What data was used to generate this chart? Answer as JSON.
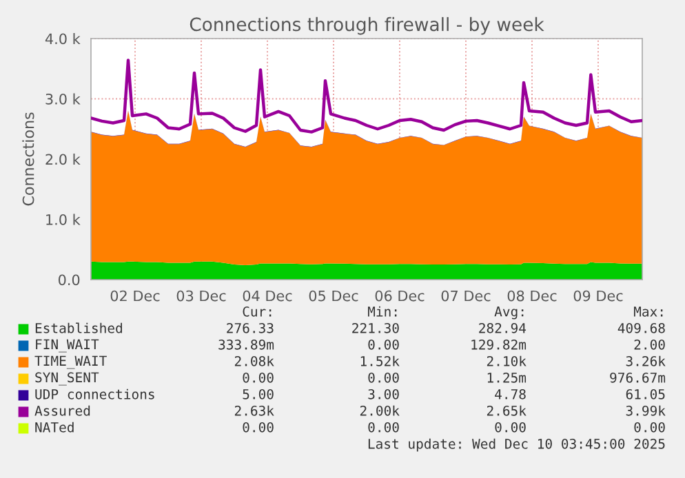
{
  "chart_data": {
    "type": "area",
    "title": "Connections through firewall - by week",
    "ylabel": "Connections",
    "stacked": true,
    "grid": true,
    "legend": "bottom",
    "line_style": "solid",
    "x": [
      "2025-12-01T20:00",
      "2025-12-02T00:00",
      "2025-12-02T04:00",
      "2025-12-02T08:00",
      "2025-12-02T09:30",
      "2025-12-02T11:00",
      "2025-12-02T16:00",
      "2025-12-02T20:00",
      "2025-12-03T00:00",
      "2025-12-03T04:00",
      "2025-12-03T08:00",
      "2025-12-03T09:30",
      "2025-12-03T11:00",
      "2025-12-03T16:00",
      "2025-12-03T20:00",
      "2025-12-04T00:00",
      "2025-12-04T04:00",
      "2025-12-04T08:00",
      "2025-12-04T09:30",
      "2025-12-04T11:00",
      "2025-12-04T16:00",
      "2025-12-04T20:00",
      "2025-12-05T00:00",
      "2025-12-05T04:00",
      "2025-12-05T08:00",
      "2025-12-05T09:00",
      "2025-12-05T11:00",
      "2025-12-05T16:00",
      "2025-12-05T20:00",
      "2025-12-06T00:00",
      "2025-12-06T04:00",
      "2025-12-06T08:00",
      "2025-12-06T12:00",
      "2025-12-06T16:00",
      "2025-12-06T20:00",
      "2025-12-07T00:00",
      "2025-12-07T04:00",
      "2025-12-07T08:00",
      "2025-12-07T12:00",
      "2025-12-07T16:00",
      "2025-12-07T20:00",
      "2025-12-08T00:00",
      "2025-12-08T04:00",
      "2025-12-08T08:00",
      "2025-12-08T09:00",
      "2025-12-08T11:00",
      "2025-12-08T16:00",
      "2025-12-08T20:00",
      "2025-12-09T00:00",
      "2025-12-09T04:00",
      "2025-12-09T08:00",
      "2025-12-09T09:20",
      "2025-12-09T11:00",
      "2025-12-09T16:00",
      "2025-12-09T20:00",
      "2025-12-10T00:00",
      "2025-12-10T04:00"
    ],
    "xlim": [
      "2025-12-01T20:00",
      "2025-12-10T04:00"
    ],
    "xticks": [
      {
        "value": "2025-12-02T12:00",
        "label": "02 Dec"
      },
      {
        "value": "2025-12-03T12:00",
        "label": "03 Dec"
      },
      {
        "value": "2025-12-04T12:00",
        "label": "04 Dec"
      },
      {
        "value": "2025-12-05T12:00",
        "label": "05 Dec"
      },
      {
        "value": "2025-12-06T12:00",
        "label": "06 Dec"
      },
      {
        "value": "2025-12-07T12:00",
        "label": "07 Dec"
      },
      {
        "value": "2025-12-08T12:00",
        "label": "08 Dec"
      },
      {
        "value": "2025-12-09T12:00",
        "label": "09 Dec"
      }
    ],
    "ylim": [
      0,
      4000
    ],
    "yticks": [
      {
        "value": 0,
        "label": "0.0"
      },
      {
        "value": 1000,
        "label": "1.0 k"
      },
      {
        "value": 2000,
        "label": "2.0 k"
      },
      {
        "value": 3000,
        "label": "3.0 k"
      },
      {
        "value": 4000,
        "label": "4.0 k"
      }
    ],
    "series": [
      {
        "name": "Established",
        "color": "#00cc00",
        "values": [
          300,
          290,
          290,
          290,
          300,
          300,
          290,
          290,
          280,
          280,
          280,
          300,
          300,
          300,
          280,
          250,
          240,
          250,
          270,
          270,
          270,
          270,
          260,
          255,
          260,
          270,
          270,
          265,
          260,
          255,
          255,
          255,
          260,
          260,
          255,
          250,
          250,
          255,
          260,
          260,
          255,
          255,
          250,
          255,
          280,
          280,
          275,
          265,
          260,
          260,
          260,
          290,
          280,
          280,
          270,
          265,
          265
        ]
      },
      {
        "name": "FIN_WAIT",
        "color": "#0066b3",
        "values": [
          null,
          null,
          null,
          null,
          null,
          null,
          null,
          null,
          null,
          null,
          null,
          null,
          null,
          null,
          null,
          null,
          null,
          null,
          null,
          null,
          null,
          null,
          null,
          null,
          null,
          null,
          null,
          null,
          null,
          null,
          null,
          null,
          null,
          null,
          null,
          null,
          null,
          null,
          null,
          null,
          null,
          null,
          null,
          null,
          null,
          null,
          null,
          null,
          null,
          null,
          null,
          null,
          null,
          null,
          null,
          null,
          null
        ]
      },
      {
        "name": "TIME_WAIT",
        "color": "#ff8000",
        "values": [
          2150,
          2110,
          2090,
          2110,
          2500,
          2180,
          2130,
          2110,
          1970,
          1970,
          2020,
          2450,
          2180,
          2200,
          2140,
          2000,
          1960,
          2030,
          2430,
          2180,
          2210,
          2160,
          1960,
          1945,
          1990,
          2380,
          2180,
          2155,
          2140,
          2045,
          1995,
          2025,
          2090,
          2120,
          2095,
          2000,
          1980,
          2045,
          2110,
          2120,
          2095,
          2045,
          2000,
          2045,
          2420,
          2270,
          2225,
          2185,
          2090,
          2040,
          2090,
          2460,
          2220,
          2270,
          2180,
          2115,
          2085
        ]
      },
      {
        "name": "SYN_SENT",
        "color": "#ffcc00",
        "values": [
          null,
          null,
          null,
          null,
          null,
          null,
          null,
          null,
          null,
          null,
          null,
          null,
          null,
          null,
          null,
          null,
          null,
          null,
          null,
          null,
          null,
          null,
          null,
          null,
          null,
          null,
          null,
          null,
          null,
          null,
          null,
          null,
          null,
          null,
          null,
          null,
          null,
          null,
          null,
          null,
          null,
          null,
          null,
          null,
          null,
          null,
          null,
          null,
          null,
          null,
          null,
          null,
          null,
          null,
          null,
          null,
          null
        ]
      },
      {
        "name": "UDP connections",
        "color": "#330099",
        "values": [
          5,
          5,
          5,
          5,
          5,
          5,
          5,
          5,
          5,
          5,
          5,
          5,
          5,
          5,
          5,
          5,
          5,
          5,
          5,
          5,
          5,
          5,
          5,
          5,
          5,
          5,
          5,
          5,
          5,
          5,
          5,
          5,
          5,
          5,
          5,
          5,
          5,
          5,
          5,
          5,
          5,
          5,
          5,
          5,
          5,
          5,
          5,
          5,
          5,
          5,
          5,
          5,
          5,
          5,
          5,
          5,
          5
        ]
      },
      {
        "name": "Assured",
        "color": "#990099",
        "type": "line",
        "values": [
          2680,
          2630,
          2600,
          2640,
          3640,
          2720,
          2750,
          2680,
          2520,
          2500,
          2580,
          3430,
          2750,
          2760,
          2680,
          2520,
          2460,
          2560,
          3480,
          2700,
          2790,
          2720,
          2480,
          2450,
          2520,
          3300,
          2750,
          2680,
          2640,
          2560,
          2500,
          2560,
          2640,
          2660,
          2620,
          2520,
          2480,
          2570,
          2630,
          2640,
          2600,
          2550,
          2500,
          2560,
          3270,
          2800,
          2780,
          2680,
          2600,
          2560,
          2600,
          3400,
          2780,
          2800,
          2700,
          2620,
          2640
        ]
      },
      {
        "name": "NATed",
        "color": "#ccff00",
        "values": [
          null,
          null,
          null,
          null,
          null,
          null,
          null,
          null,
          null,
          null,
          null,
          null,
          null,
          null,
          null,
          null,
          null,
          null,
          null,
          null,
          null,
          null,
          null,
          null,
          null,
          null,
          null,
          null,
          null,
          null,
          null,
          null,
          null,
          null,
          null,
          null,
          null,
          null,
          null,
          null,
          null,
          null,
          null,
          null,
          null,
          null,
          null,
          null,
          null,
          null,
          null,
          null,
          null,
          null,
          null,
          null,
          null
        ]
      }
    ],
    "annotations": [
      "Cur:",
      "Min:",
      "Avg:",
      "Max:",
      "276.33",
      "221.30",
      "282.94",
      "409.68",
      "333.89m",
      "0.00",
      "129.82m",
      "2.00",
      "2.08k",
      "1.52k",
      "2.10k",
      "3.26k",
      "0.00",
      "0.00",
      "1.25m",
      "976.67m",
      "5.00",
      "3.00",
      "4.78",
      "61.05",
      "2.63k",
      "2.00k",
      "2.65k",
      "3.99k",
      "0.00",
      "0.00",
      "0.00",
      "0.00",
      "Last update: Wed Dec 10 03:45:00 2025"
    ]
  }
}
